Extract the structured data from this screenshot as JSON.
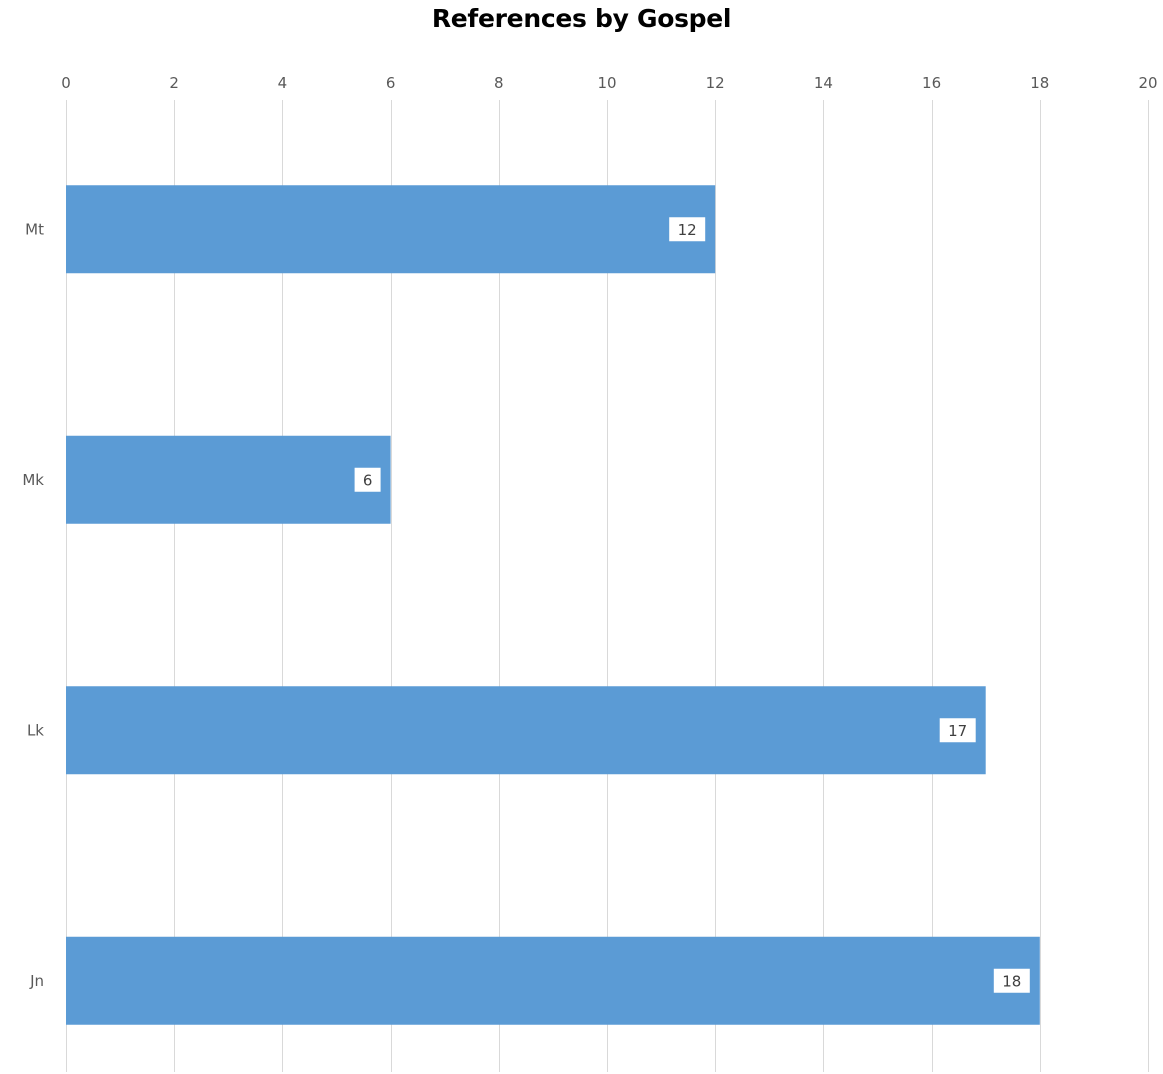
{
  "chart_data": {
    "type": "bar",
    "orientation": "horizontal",
    "title": "References by Gospel",
    "xlabel": "",
    "ylabel": "",
    "categories": [
      "Mt",
      "Mk",
      "Lk",
      "Jn"
    ],
    "values": [
      12,
      6,
      17,
      18
    ],
    "xlim": [
      0,
      20
    ],
    "x_ticks": [
      0,
      2,
      4,
      6,
      8,
      10,
      12,
      14,
      16,
      18,
      20
    ],
    "x_axis_position": "top",
    "grid": true,
    "legend": "none",
    "data_labels": true,
    "colors": {
      "bar": "#5b9bd5",
      "grid": "#d9d9d9",
      "label_box": "#ffffff"
    }
  }
}
